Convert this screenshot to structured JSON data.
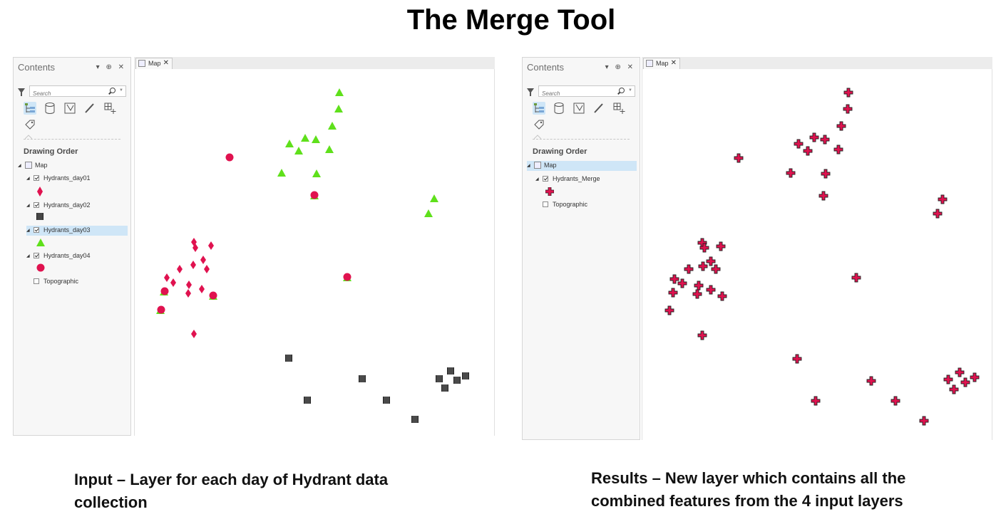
{
  "title": "The Merge Tool",
  "contents_label": "Contents",
  "pane_controls": "▾ ⊕ ✕",
  "search_placeholder": "Search",
  "drawing_order_label": "Drawing Order",
  "map_label": "Map",
  "map_tab_label": "Map",
  "tab_close": "✕",
  "left": {
    "layers": [
      "Hydrants_day01",
      "Hydrants_day02",
      "Hydrants_day03",
      "Hydrants_day04"
    ],
    "basemap": "Topographic",
    "selected_layer": "Hydrants_day03"
  },
  "right": {
    "layers": [
      "Hydrants_Merge"
    ],
    "basemap": "Topographic"
  },
  "colors": {
    "hydrant_red": "#e0124f",
    "triangle_green": "#5fe01b",
    "selection_blue": "#cfe6f7"
  },
  "captions": {
    "input_line1": "Input – Layer for each day of Hydrant data",
    "input_line2": "collection",
    "results_line1": "Results – New layer which contains all the",
    "results_line2": "combined features from the 4 input layers"
  }
}
